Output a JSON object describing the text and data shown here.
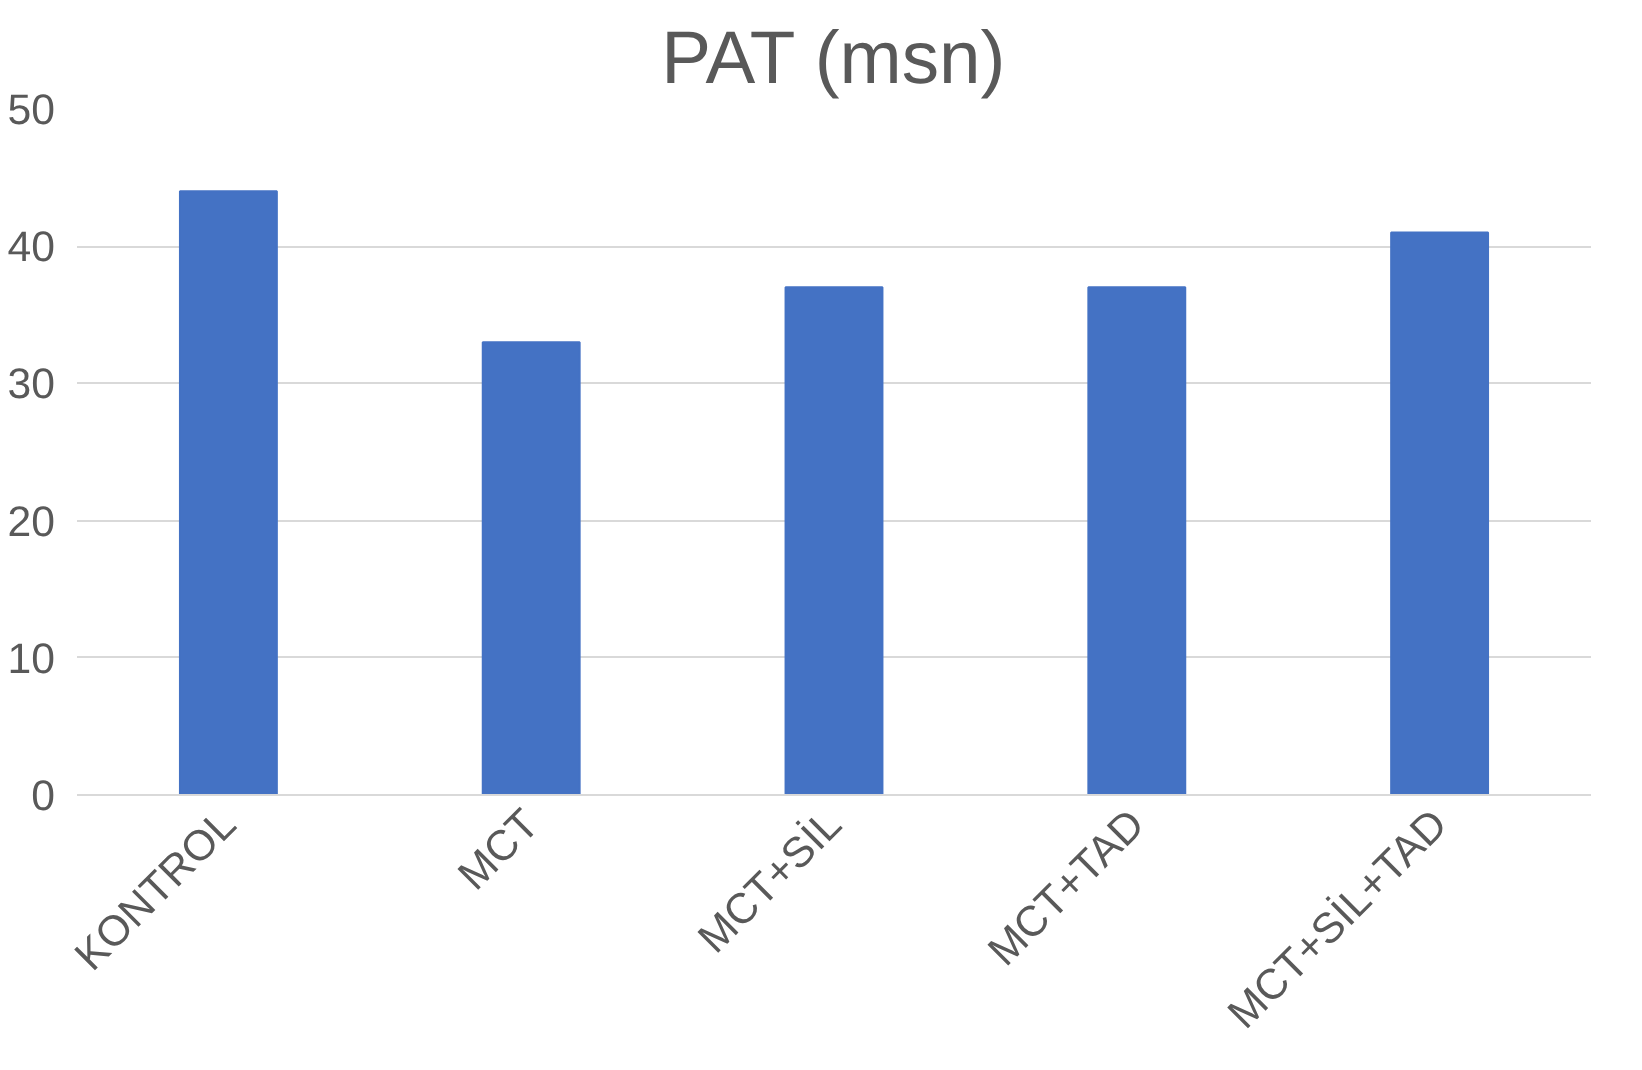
{
  "chart_data": {
    "type": "bar",
    "title": "PAT (msn)",
    "categories": [
      "KONTROL",
      "MCT",
      "MCT+SİL",
      "MCT+TAD",
      "MCT+SİL+TAD"
    ],
    "values": [
      44,
      33,
      37,
      37,
      41
    ],
    "color": "#4472c4",
    "ylim": [
      0,
      50
    ],
    "yticks": [
      0,
      10,
      20,
      30,
      40,
      50
    ],
    "grid": "y"
  }
}
